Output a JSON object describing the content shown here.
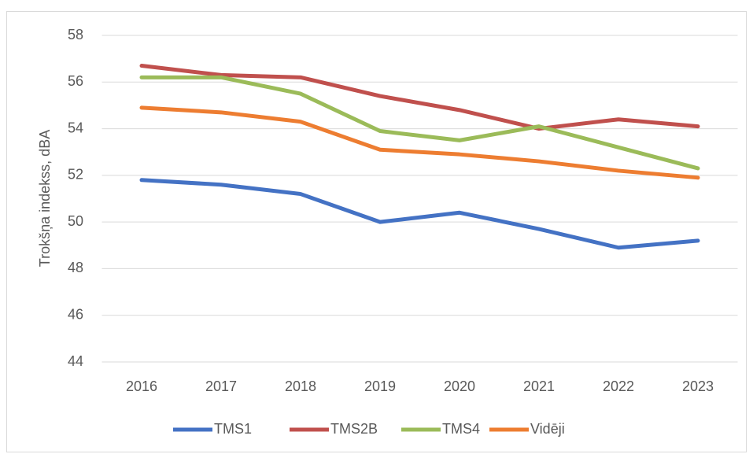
{
  "chart_data": {
    "type": "line",
    "y_label": "Trokšņa indekss, dBA",
    "categories": [
      "2016",
      "2017",
      "2018",
      "2019",
      "2020",
      "2021",
      "2022",
      "2023"
    ],
    "series": [
      {
        "name": "TMS1",
        "color": "#4472c4",
        "values": [
          51.8,
          51.6,
          51.2,
          50.0,
          50.4,
          49.7,
          48.9,
          49.2
        ]
      },
      {
        "name": "TMS2B",
        "color": "#c0504d",
        "values": [
          56.7,
          56.3,
          56.2,
          55.4,
          54.8,
          54.0,
          54.4,
          54.1
        ]
      },
      {
        "name": "TMS4",
        "color": "#9bbb59",
        "values": [
          56.2,
          56.2,
          55.5,
          53.9,
          53.5,
          54.1,
          53.2,
          52.3
        ]
      },
      {
        "name": "Vidēji",
        "color": "#ed7d31",
        "values": [
          54.9,
          54.7,
          54.3,
          53.1,
          52.9,
          52.6,
          52.2,
          51.9
        ]
      }
    ],
    "ylim": [
      44,
      58
    ],
    "yticks": [
      44,
      46,
      48,
      50,
      52,
      54,
      56,
      58
    ],
    "grid": true,
    "legend": "bottom"
  }
}
